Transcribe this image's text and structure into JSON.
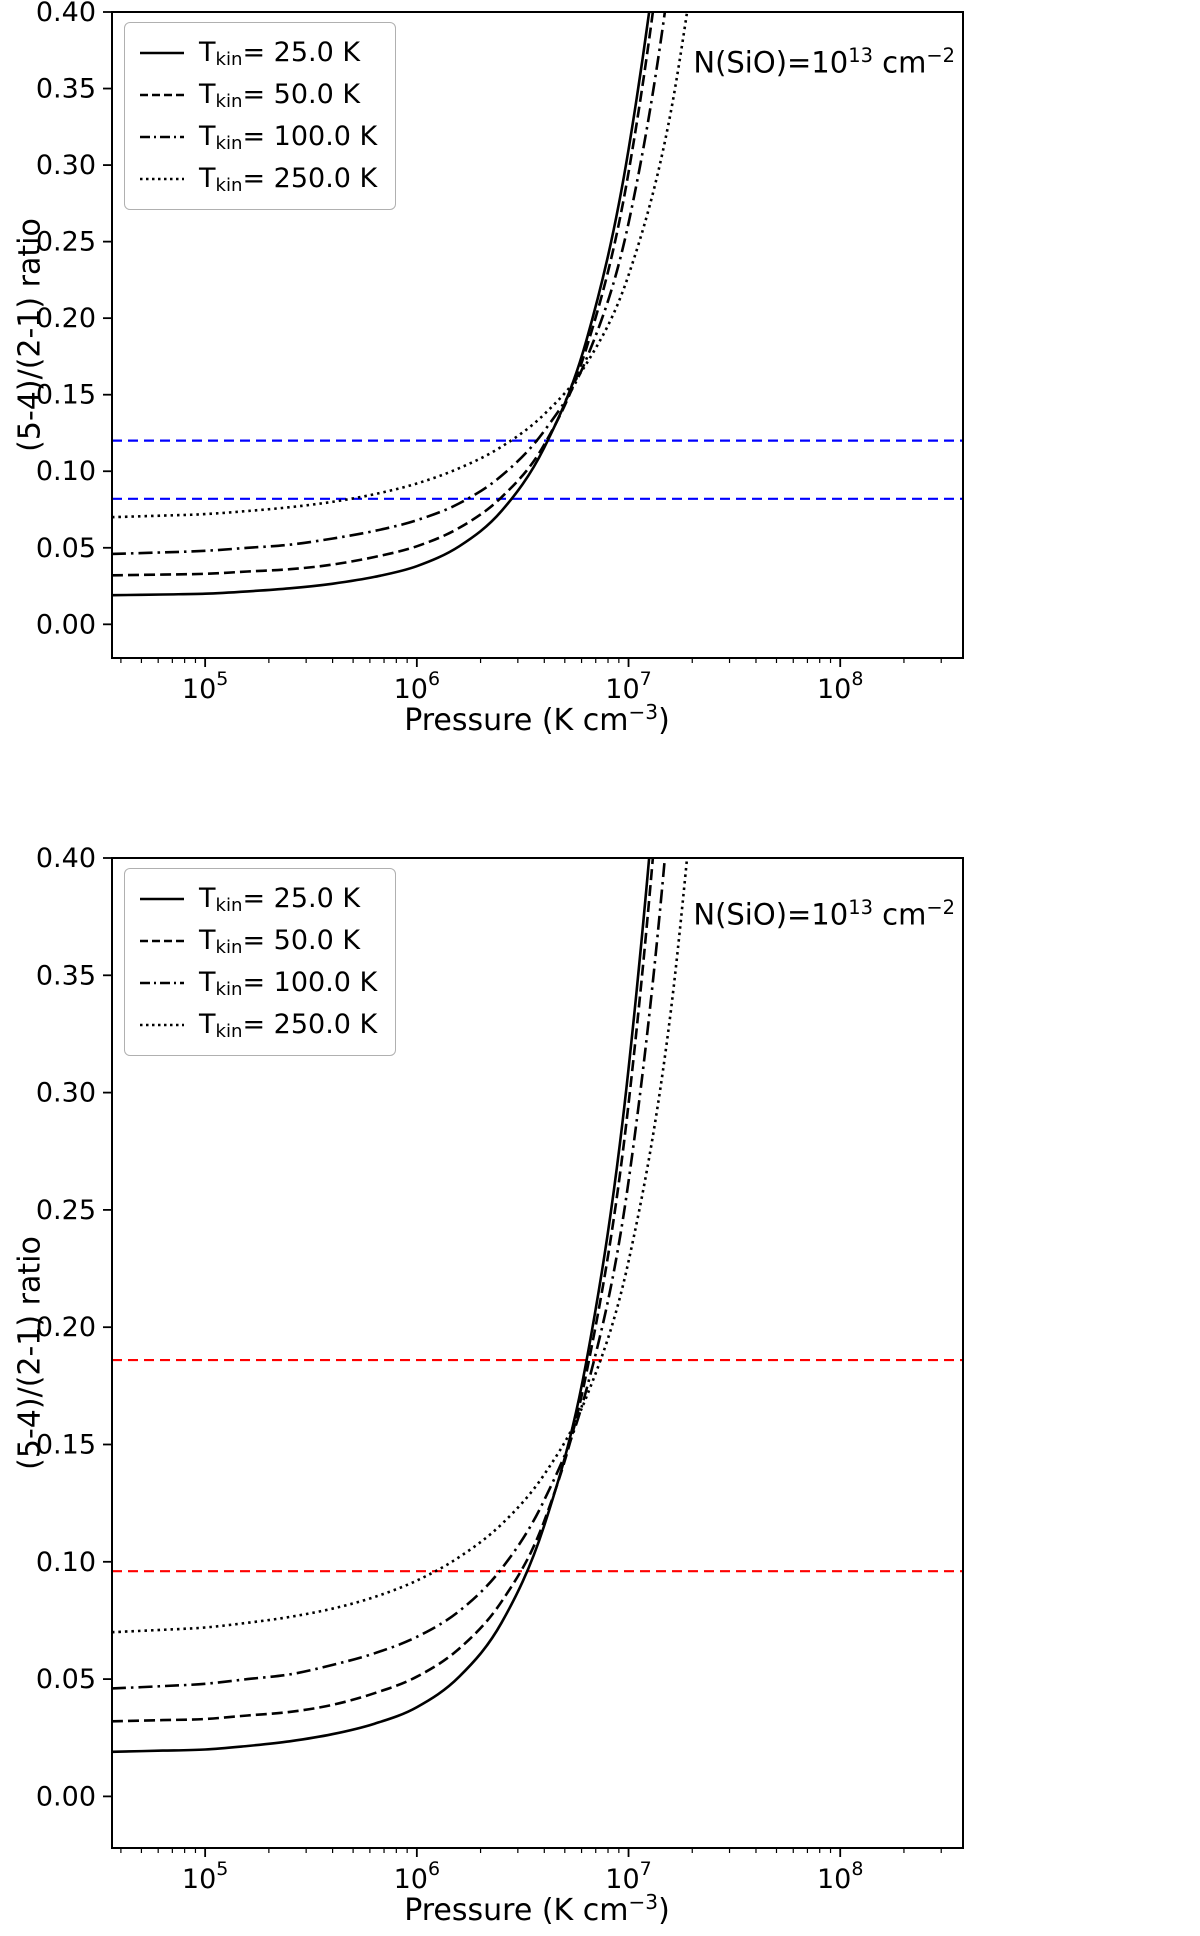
{
  "figure": {
    "background": "#ffffff",
    "panel_count": 2
  },
  "chart_data": [
    {
      "type": "line",
      "title": "",
      "xlabel": {
        "pre": "Pressure (K cm",
        "sup": "−3",
        "post": ")"
      },
      "ylabel": "(5-4)/(2-1) ratio",
      "annotation": {
        "pre": "N(SiO)=10",
        "sup1": "13",
        "mid": " cm",
        "sup2": "−2"
      },
      "legend_position": "upper-left",
      "x_axis": {
        "scale": "log10",
        "min_log10": 4.56,
        "max_log10": 8.58,
        "tick_exponents": [
          5,
          6,
          7,
          8
        ],
        "unit": "K cm−3"
      },
      "y_axis": {
        "min": -0.022,
        "max": 0.4,
        "tick_values": [
          0.0,
          0.05,
          0.1,
          0.15,
          0.2,
          0.25,
          0.3,
          0.35,
          0.4
        ],
        "tick_labels": [
          "0.00",
          "0.05",
          "0.10",
          "0.15",
          "0.20",
          "0.25",
          "0.30",
          "0.35",
          "0.40"
        ]
      },
      "x_log10": [
        4.56,
        4.8,
        5.0,
        5.2,
        5.4,
        5.6,
        5.8,
        6.0,
        6.2,
        6.4,
        6.6,
        6.8,
        7.0,
        7.2,
        7.4
      ],
      "series": [
        {
          "temperature_K": 25.0,
          "label_prefix": "T",
          "label_sub": "kin",
          "label_rest": "= 25.0 K",
          "style": "solid",
          "color": "#000000",
          "values": [
            0.019,
            0.0195,
            0.02,
            0.0215,
            0.0235,
            0.0265,
            0.031,
            0.038,
            0.051,
            0.074,
            0.115,
            0.185,
            0.31,
            0.52,
            0.85
          ]
        },
        {
          "temperature_K": 50.0,
          "label_prefix": "T",
          "label_sub": "kin",
          "label_rest": "= 50.0 K",
          "style": "dashed",
          "color": "#000000",
          "values": [
            0.032,
            0.0325,
            0.033,
            0.0345,
            0.036,
            0.039,
            0.044,
            0.051,
            0.063,
            0.083,
            0.117,
            0.18,
            0.295,
            0.5,
            0.82
          ]
        },
        {
          "temperature_K": 100.0,
          "label_prefix": "T",
          "label_sub": "kin",
          "label_rest": "= 100.0 K",
          "style": "dashdot",
          "color": "#000000",
          "values": [
            0.046,
            0.047,
            0.048,
            0.05,
            0.052,
            0.056,
            0.061,
            0.068,
            0.079,
            0.097,
            0.126,
            0.173,
            0.262,
            0.43,
            0.7
          ]
        },
        {
          "temperature_K": 250.0,
          "label_prefix": "T",
          "label_sub": "kin",
          "label_rest": "= 250.0 K",
          "style": "dotted",
          "color": "#000000",
          "values": [
            0.07,
            0.071,
            0.072,
            0.074,
            0.0765,
            0.08,
            0.085,
            0.092,
            0.102,
            0.116,
            0.137,
            0.17,
            0.228,
            0.335,
            0.52
          ]
        }
      ],
      "hlines": [
        {
          "y": 0.12,
          "color": "#0000ff",
          "style": "dashed"
        },
        {
          "y": 0.082,
          "color": "#0000ff",
          "style": "dashed"
        }
      ]
    },
    {
      "type": "line",
      "title": "",
      "xlabel": {
        "pre": "Pressure (K cm",
        "sup": "−3",
        "post": ")"
      },
      "ylabel": "(5-4)/(2-1) ratio",
      "annotation": {
        "pre": "N(SiO)=10",
        "sup1": "13",
        "mid": " cm",
        "sup2": "−2"
      },
      "legend_position": "upper-left",
      "x_axis": {
        "scale": "log10",
        "min_log10": 4.56,
        "max_log10": 8.58,
        "tick_exponents": [
          5,
          6,
          7,
          8
        ],
        "unit": "K cm−3"
      },
      "y_axis": {
        "min": -0.022,
        "max": 0.4,
        "tick_values": [
          0.0,
          0.05,
          0.1,
          0.15,
          0.2,
          0.25,
          0.3,
          0.35,
          0.4
        ],
        "tick_labels": [
          "0.00",
          "0.05",
          "0.10",
          "0.15",
          "0.20",
          "0.25",
          "0.30",
          "0.35",
          "0.40"
        ]
      },
      "x_log10": [
        4.56,
        4.8,
        5.0,
        5.2,
        5.4,
        5.6,
        5.8,
        6.0,
        6.2,
        6.4,
        6.6,
        6.8,
        7.0,
        7.2,
        7.4
      ],
      "series": [
        {
          "temperature_K": 25.0,
          "label_prefix": "T",
          "label_sub": "kin",
          "label_rest": "= 25.0 K",
          "style": "solid",
          "color": "#000000",
          "values": [
            0.019,
            0.0195,
            0.02,
            0.0215,
            0.0235,
            0.0265,
            0.031,
            0.038,
            0.051,
            0.074,
            0.115,
            0.185,
            0.31,
            0.52,
            0.85
          ]
        },
        {
          "temperature_K": 50.0,
          "label_prefix": "T",
          "label_sub": "kin",
          "label_rest": "= 50.0 K",
          "style": "dashed",
          "color": "#000000",
          "values": [
            0.032,
            0.0325,
            0.033,
            0.0345,
            0.036,
            0.039,
            0.044,
            0.051,
            0.063,
            0.083,
            0.117,
            0.18,
            0.295,
            0.5,
            0.82
          ]
        },
        {
          "temperature_K": 100.0,
          "label_prefix": "T",
          "label_sub": "kin",
          "label_rest": "= 100.0 K",
          "style": "dashdot",
          "color": "#000000",
          "values": [
            0.046,
            0.047,
            0.048,
            0.05,
            0.052,
            0.056,
            0.061,
            0.068,
            0.079,
            0.097,
            0.126,
            0.173,
            0.262,
            0.43,
            0.7
          ]
        },
        {
          "temperature_K": 250.0,
          "label_prefix": "T",
          "label_sub": "kin",
          "label_rest": "= 250.0 K",
          "style": "dotted",
          "color": "#000000",
          "values": [
            0.07,
            0.071,
            0.072,
            0.074,
            0.0765,
            0.08,
            0.085,
            0.092,
            0.102,
            0.116,
            0.137,
            0.17,
            0.228,
            0.335,
            0.52
          ]
        }
      ],
      "hlines": [
        {
          "y": 0.186,
          "color": "#ff0000",
          "style": "dashed"
        },
        {
          "y": 0.096,
          "color": "#ff0000",
          "style": "dashed"
        }
      ]
    }
  ]
}
